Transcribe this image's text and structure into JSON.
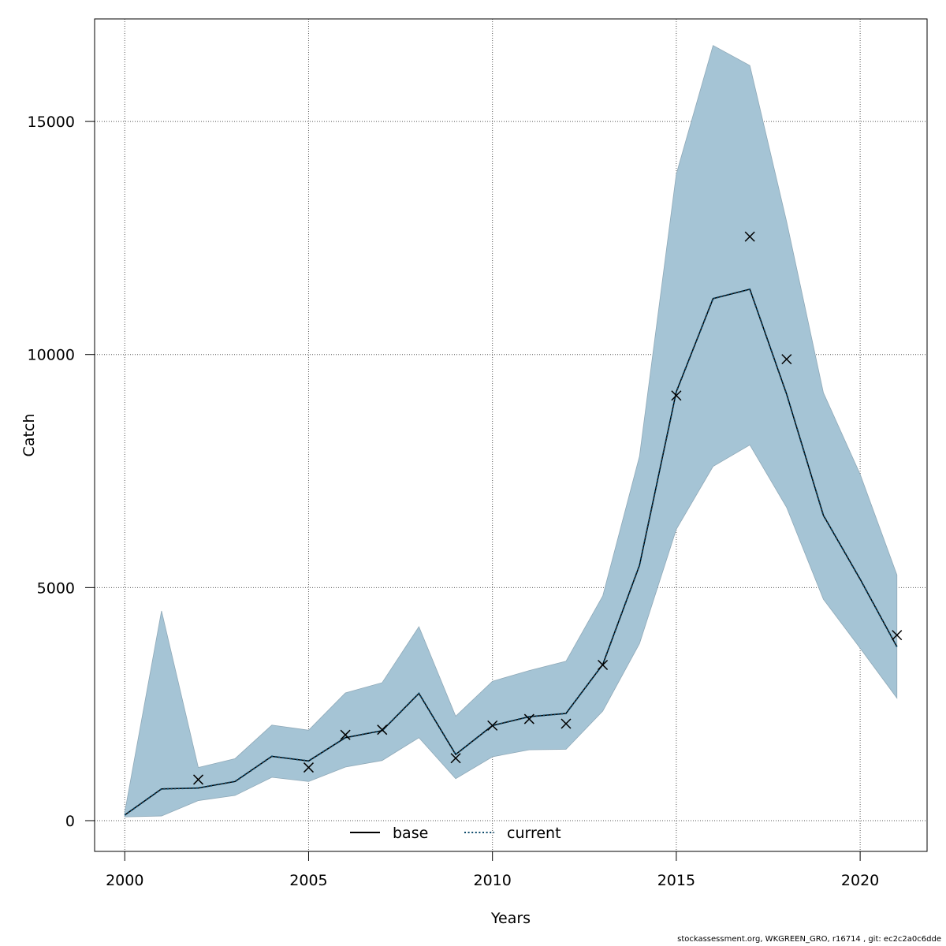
{
  "chart_data": {
    "type": "line",
    "xlabel": "Years",
    "ylabel": "Catch",
    "xlim": [
      1999.18,
      2021.82
    ],
    "ylim": [
      -660,
      17200
    ],
    "x_ticks": [
      2000,
      2005,
      2010,
      2015,
      2020
    ],
    "x_tick_labels": [
      "2000",
      "2005",
      "2010",
      "2015",
      "2020"
    ],
    "y_ticks": [
      0,
      5000,
      10000,
      15000
    ],
    "y_tick_labels": [
      "0",
      "5000",
      "10000",
      "15000"
    ],
    "grid": true,
    "legend_position": "bottom-center",
    "x": [
      2000,
      2001,
      2002,
      2003,
      2004,
      2005,
      2006,
      2007,
      2008,
      2009,
      2010,
      2011,
      2012,
      2013,
      2014,
      2015,
      2016,
      2017,
      2018,
      2019,
      2020,
      2021
    ],
    "series": [
      {
        "name": "base",
        "style": "solid",
        "color": "#000000",
        "values": [
          120,
          680,
          700,
          840,
          1380,
          1280,
          1780,
          1930,
          2730,
          1420,
          2040,
          2230,
          2300,
          3350,
          5480,
          9200,
          11200,
          11400,
          9150,
          6550,
          5180,
          3730
        ]
      },
      {
        "name": "current",
        "style": "dotted",
        "color": "#0d4a6b",
        "values": [
          120,
          680,
          700,
          840,
          1380,
          1280,
          1780,
          1930,
          2730,
          1420,
          2040,
          2230,
          2300,
          3350,
          5480,
          9200,
          11200,
          11400,
          9150,
          6550,
          5180,
          3730
        ]
      }
    ],
    "confidence_band": {
      "color": "#a5c4d5",
      "lower": [
        80,
        100,
        430,
        540,
        930,
        840,
        1150,
        1290,
        1780,
        900,
        1370,
        1520,
        1530,
        2350,
        3800,
        6250,
        7600,
        8060,
        6720,
        4750,
        3700,
        2630
      ],
      "upper": [
        180,
        4500,
        1140,
        1330,
        2050,
        1940,
        2740,
        2960,
        4160,
        2240,
        2990,
        3220,
        3420,
        4820,
        7820,
        13870,
        16630,
        16200,
        12850,
        9180,
        7430,
        5270
      ]
    },
    "observations": {
      "marker": "x",
      "x": [
        2002,
        2005,
        2006,
        2007,
        2009,
        2010,
        2011,
        2012,
        2013,
        2015,
        2017,
        2018,
        2021
      ],
      "y": [
        880,
        1140,
        1840,
        1950,
        1340,
        2040,
        2180,
        2080,
        3340,
        9120,
        12530,
        9900,
        3980
      ]
    }
  },
  "footer": "stockassessment.org, WKGREEN_GRO, r16714 , git: ec2c2a0c6dde"
}
